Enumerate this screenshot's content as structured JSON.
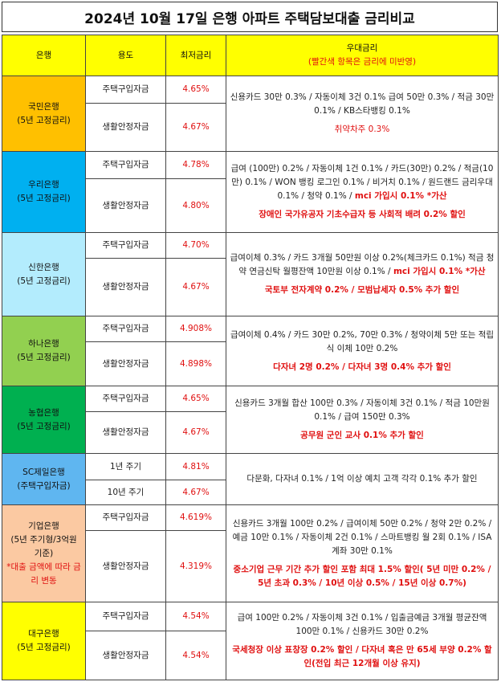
{
  "title": "2024년 10월 17일 은행 아파트 주택담보대출 금리비교",
  "headers": {
    "bank": "은행",
    "purpose": "용도",
    "rate": "최저금리",
    "benefit": "우대금리",
    "benefit_note": "(빨간색 항목은 금리에 미반영)"
  },
  "colors": {
    "header": "#ffff00",
    "kb": "#ffc000",
    "woori": "#00b0f0",
    "shinhan": "#b3ecfd",
    "hana": "#92d050",
    "nh": "#00b050",
    "sc": "#5fb6f0",
    "ibk": "#fbc9a2",
    "dgb": "#ffff00",
    "red": "#e01010"
  },
  "banks": [
    {
      "name": "국민은행",
      "sub": "(5년 고정금리)",
      "rows": [
        {
          "purpose": "주택구입자금",
          "rate": "4.65%"
        },
        {
          "purpose": "생활안정자금",
          "rate": "4.67%"
        }
      ],
      "benefit": "신용카드 30만 0.3% / 자동이체 3건 0.1% 급여 50만 0.3% / 적금 30만 0.1% / KB스타뱅킹 0.1%",
      "benefit_red": "",
      "note": "취약차주 0.3%"
    },
    {
      "name": "우리은행",
      "sub": "(5년 고정금리)",
      "rows": [
        {
          "purpose": "주택구입자금",
          "rate": "4.78%"
        },
        {
          "purpose": "생활안정자금",
          "rate": "4.80%"
        }
      ],
      "benefit": "급여 (100만) 0.2% / 자동이체 1건 0.1% / 카드(30만) 0.2% / 적금(10만) 0.1% / WON 뱅킹 로그인 0.1% / 비거치 0.1% / 원드랜드 금리우대 0.1% / 청약 0.1% / ",
      "benefit_red": "mci 가입시 0.1% *가산",
      "note": "장애인 국가유공자 기초수급자 등 사회적 배려 0.2% 할인"
    },
    {
      "name": "신한은행",
      "sub": "(5년 고정금리)",
      "rows": [
        {
          "purpose": "주택구입자금",
          "rate": "4.70%"
        },
        {
          "purpose": "생활안정자금",
          "rate": "4.67%"
        }
      ],
      "benefit": "급여이체 0.3% / 카드 3개월 50만원 이상 0.2%(체크카드 0.1%) 적금 청약 연금신탁 월평잔액 10만원 이상 0.1% / ",
      "benefit_red": "mci 가입시 0.1% *가산",
      "note": "국토부 전자계약 0.2% / 모범납세자 0.5% 추가 할인"
    },
    {
      "name": "하나은행",
      "sub": "(5년 고정금리)",
      "rows": [
        {
          "purpose": "주택구입자금",
          "rate": "4.908%"
        },
        {
          "purpose": "생활안정자금",
          "rate": "4.898%"
        }
      ],
      "benefit": "급여이체 0.4% / 카드 30만 0.2%, 70만 0.3% / 청약이체 5만 또는 적립식 이체 10만 0.2%",
      "benefit_red": "",
      "note": "다자녀 2명 0.2% / 다자녀 3명 0.4% 추가 할인"
    },
    {
      "name": "농협은행",
      "sub": "(5년 고정금리)",
      "rows": [
        {
          "purpose": "주택구입자금",
          "rate": "4.65%"
        },
        {
          "purpose": "생활안정자금",
          "rate": "4.67%"
        }
      ],
      "benefit": "신용카드 3개월 합산 100만 0.3% / 자동이체 3건 0.1% / 적금 10만원 0.1% / 급여 150만 0.3%",
      "benefit_red": "",
      "note": "공무원 군인 교사 0.1% 추가 할인"
    },
    {
      "name": "SC제일은행",
      "sub": "(주택구입자금)",
      "rows": [
        {
          "purpose": "1년 주기",
          "rate": "4.81%"
        },
        {
          "purpose": "10년 주기",
          "rate": "4.67%"
        }
      ],
      "benefit": "다문화, 다자녀 0.1% / 1억 이상 예치 고객 각각 0.1% 추가 할인",
      "benefit_red": "",
      "note": ""
    },
    {
      "name": "기업은행",
      "sub": "(5년 주기형/3억원 기준)",
      "sub_red": "*대출 금액에 따라 금리 변동",
      "rows": [
        {
          "purpose": "주택구입자금",
          "rate": "4.619%"
        },
        {
          "purpose": "생활안정자금",
          "rate": "4.319%"
        }
      ],
      "benefit": "신용카드 3개월 100만 0.2% / 급여이체 50만 0.2% / 청약 2만 0.2% / 예금 10만 0.1% / 자동이체 2건 0.1% / 스마트뱅킹 월 2회 0.1% / ISA계좌 30만 0.1%",
      "benefit_red": "",
      "note": "중소기업 근무 기간 추가 할인 포함 최대 1.5% 할인( 5년 미만 0.2% / 5년 초과 0.3% / 10년 이상 0.5% / 15년 이상 0.7%)"
    },
    {
      "name": "대구은행",
      "sub": "(5년 고정금리)",
      "rows": [
        {
          "purpose": "주택구입자금",
          "rate": "4.54%"
        },
        {
          "purpose": "생활안정자금",
          "rate": "4.54%"
        }
      ],
      "benefit": "급여 100만 0.2% / 자동이체 3건 0.1% / 입출금예금 3개월 평균잔액 100만 0.1% / 신용카드 30만 0.2%",
      "benefit_red": "",
      "note": "국세청장 이상 표창장 0.2% 할인 / 다자녀 혹은 만 65세 부양 0.2% 할인(전입 최근 12개월 이상 유지)"
    }
  ]
}
